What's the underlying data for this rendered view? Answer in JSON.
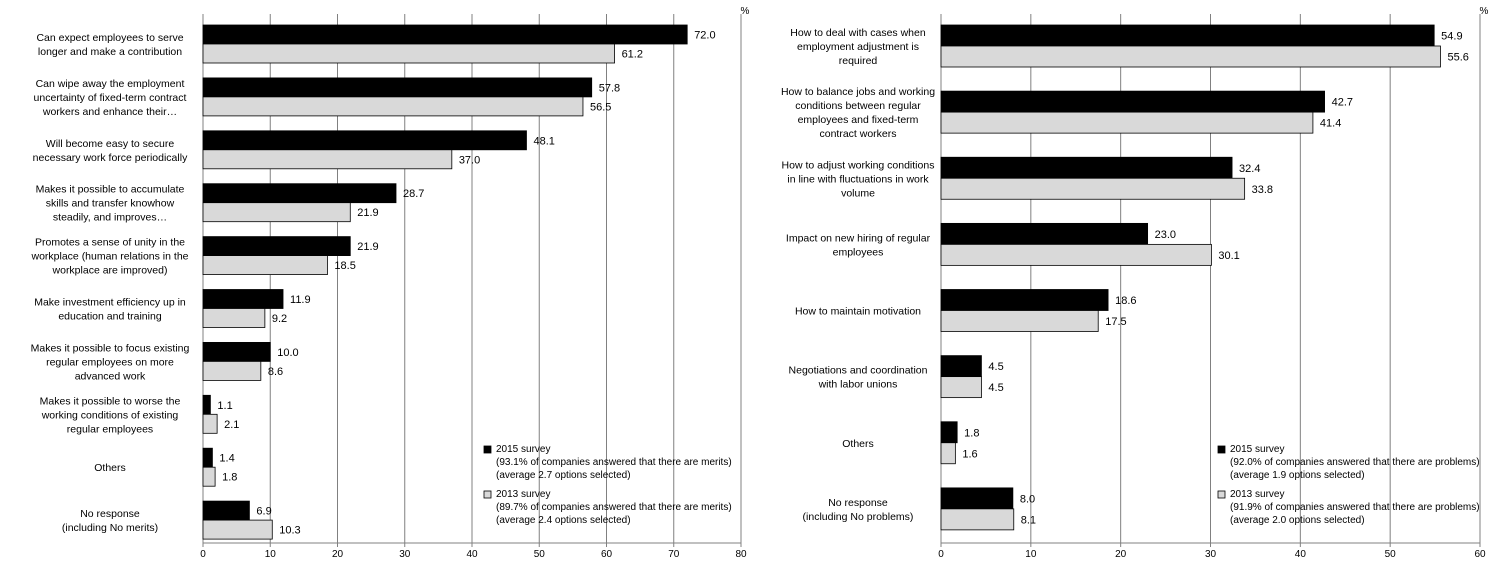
{
  "unit_label": "%",
  "colors": {
    "series_2015": "#000000",
    "series_2013": "#d9d9d9",
    "grid": "#808080",
    "bar_stroke": "#000000"
  },
  "chart_data": [
    {
      "type": "bar",
      "orientation": "horizontal",
      "xlim": [
        0,
        80
      ],
      "xticks": [
        0,
        10,
        20,
        30,
        40,
        50,
        60,
        70,
        80
      ],
      "grid": true,
      "legend_position": "bottom-right",
      "categories": [
        [
          "Can expect employees to serve",
          "longer and make a contribution"
        ],
        [
          "Can wipe away the employment",
          "uncertainty of fixed-term contract",
          "workers and enhance their…"
        ],
        [
          "Will become easy to secure",
          "necessary work force periodically"
        ],
        [
          "Makes it possible to accumulate",
          "skills and transfer knowhow",
          "steadily, and improves…"
        ],
        [
          "Promotes a sense of unity in the",
          "workplace (human relations in the",
          "workplace are improved)"
        ],
        [
          "Make investment efficiency up in",
          "education and training"
        ],
        [
          "Makes it possible to focus existing",
          "regular employees on more",
          "advanced work"
        ],
        [
          "Makes it possible to worse the",
          "working conditions of existing",
          "regular employees"
        ],
        [
          "Others"
        ],
        [
          "No response",
          "(including No merits)"
        ]
      ],
      "series": [
        {
          "name": "2015 survey",
          "legend_notes": [
            "(93.1% of companies answered that there are merits)",
            "(average 2.7 options selected)"
          ],
          "values": [
            72.0,
            57.8,
            48.1,
            28.7,
            21.9,
            11.9,
            10.0,
            1.1,
            1.4,
            6.9
          ],
          "labels": [
            "72.0",
            "57.8",
            "48.1",
            "28.7",
            "21.9",
            "11.9",
            "10.0",
            "1.1",
            "1.4",
            "6.9"
          ]
        },
        {
          "name": "2013 survey",
          "legend_notes": [
            "(89.7% of companies answered that there are merits)",
            "(average 2.4 options selected)"
          ],
          "values": [
            61.2,
            56.5,
            37.0,
            21.9,
            18.5,
            9.2,
            8.6,
            2.1,
            1.8,
            10.3
          ],
          "labels": [
            "61.2",
            "56.5",
            "37.0",
            "21.9",
            "18.5",
            "9.2",
            "8.6",
            "2.1",
            "1.8",
            "10.3"
          ]
        }
      ]
    },
    {
      "type": "bar",
      "orientation": "horizontal",
      "xlim": [
        0,
        60
      ],
      "xticks": [
        0,
        10,
        20,
        30,
        40,
        50,
        60
      ],
      "grid": true,
      "legend_position": "bottom-right",
      "categories": [
        [
          "How to deal with cases when",
          "employment adjustment is",
          "required"
        ],
        [
          "How to balance jobs and working",
          "conditions between regular",
          "employees and fixed-term",
          "contract workers"
        ],
        [
          "How to adjust working conditions",
          "in line with fluctuations in work",
          "volume"
        ],
        [
          "Impact on new hiring of regular",
          "employees"
        ],
        [
          "How to maintain motivation"
        ],
        [
          "Negotiations and coordination",
          "with labor unions"
        ],
        [
          "Others"
        ],
        [
          "No response",
          "(including No problems)"
        ]
      ],
      "series": [
        {
          "name": "2015 survey",
          "legend_notes": [
            "(92.0% of companies answered that there are problems)",
            "(average 1.9 options selected)"
          ],
          "values": [
            54.9,
            42.7,
            32.4,
            23.0,
            18.6,
            4.5,
            1.8,
            8.0
          ],
          "labels": [
            "54.9",
            "42.7",
            "32.4",
            "23.0",
            "18.6",
            "4.5",
            "1.8",
            "8.0"
          ]
        },
        {
          "name": "2013 survey",
          "legend_notes": [
            "(91.9% of companies answered that there are problems)",
            "(average 2.0 options selected)"
          ],
          "values": [
            55.6,
            41.4,
            33.8,
            30.1,
            17.5,
            4.5,
            1.6,
            8.1
          ],
          "labels": [
            "55.6",
            "41.4",
            "33.8",
            "30.1",
            "17.5",
            "4.5",
            "1.6",
            "8.1"
          ]
        }
      ]
    }
  ]
}
